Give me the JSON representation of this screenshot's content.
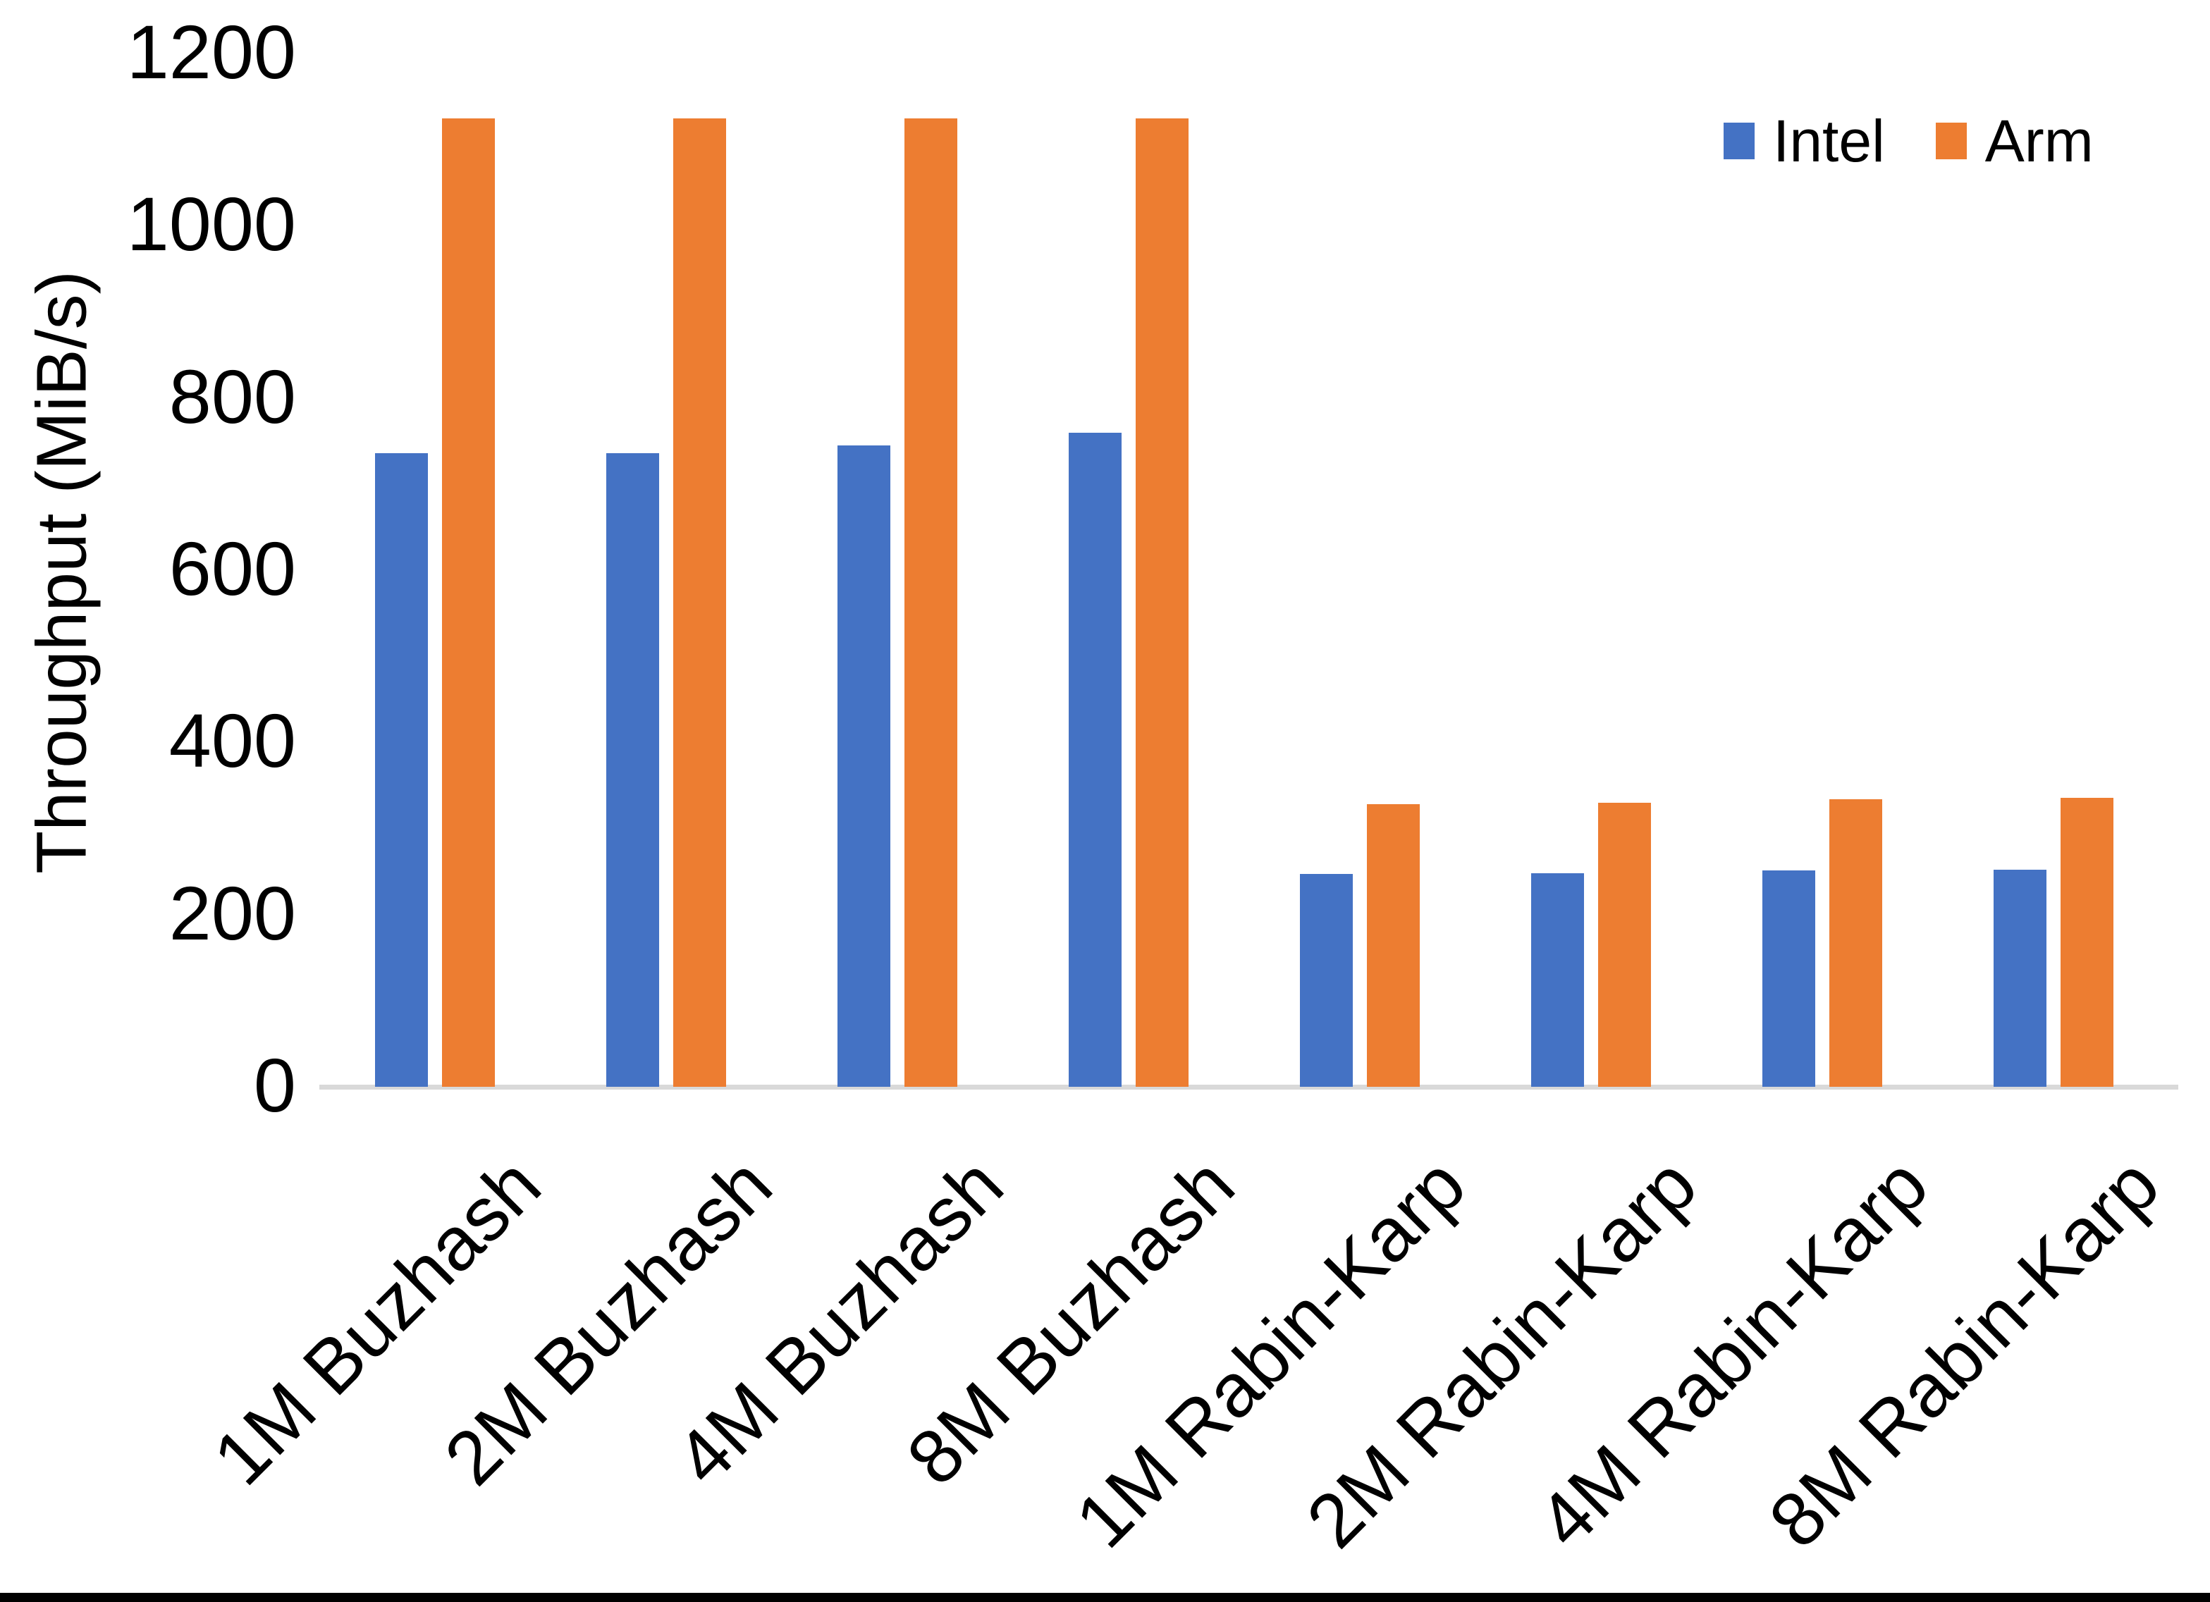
{
  "chart_data": {
    "type": "bar",
    "title": "",
    "ylabel": "Throughput (MiB/s)",
    "categories": [
      "1M Buzhash",
      "2M Buzhash",
      "4M Buzhash",
      "8M Buzhash",
      "1M Rabin-Karp",
      "2M Rabin-Karp",
      "4M Rabin-Karp",
      "8M Rabin-Karp"
    ],
    "series": [
      {
        "name": "Intel",
        "color": "#4472C4",
        "values": [
          736,
          736,
          745,
          760,
          247,
          248,
          251,
          252
        ]
      },
      {
        "name": "Arm",
        "color": "#ED7D31",
        "values": [
          1125,
          1125,
          1125,
          1125,
          328,
          330,
          334,
          336
        ]
      }
    ],
    "ylim": [
      0,
      1200
    ],
    "yticks": [
      0,
      200,
      400,
      600,
      800,
      1000,
      1200
    ],
    "grid": false,
    "legend_position": "top-right",
    "axis_line_color": "#D9D9D9",
    "text_color": "#000000",
    "page_bottom_border_color": "#000000"
  }
}
